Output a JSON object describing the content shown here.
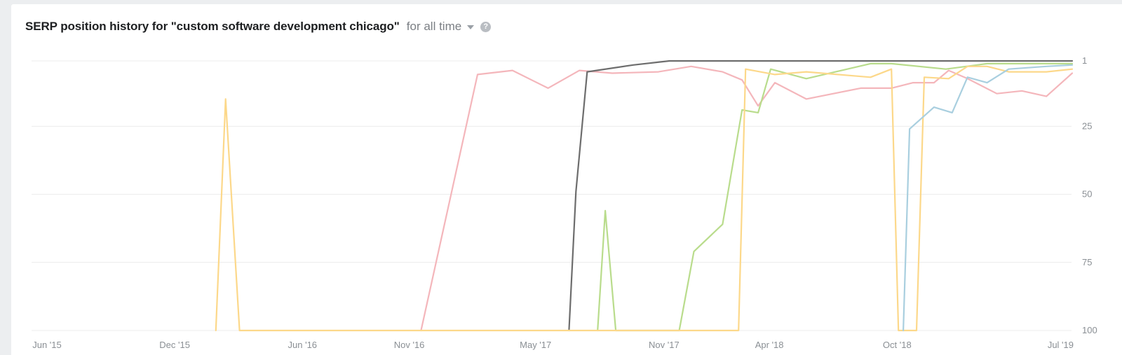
{
  "header": {
    "title": "SERP position history for \"custom software development chicago\"",
    "range_label": "for all time",
    "help_glyph": "?"
  },
  "chart_data": {
    "type": "line",
    "title": "SERP position history for \"custom software development chicago\"",
    "xlabel": "",
    "ylabel": "",
    "y_inverted": true,
    "ylim": [
      1,
      100
    ],
    "y_ticks": [
      1,
      25,
      50,
      75,
      100
    ],
    "xlim": [
      "2015-06-01",
      "2019-07-01"
    ],
    "x_ticks": [
      {
        "date": "2015-06-01",
        "label": "Jun '15"
      },
      {
        "date": "2015-12-01",
        "label": "Dec '15"
      },
      {
        "date": "2016-06-01",
        "label": "Jun '16"
      },
      {
        "date": "2016-11-01",
        "label": "Nov '16"
      },
      {
        "date": "2017-05-01",
        "label": "May '17"
      },
      {
        "date": "2017-11-01",
        "label": "Nov '17"
      },
      {
        "date": "2018-04-01",
        "label": "Apr '18"
      },
      {
        "date": "2018-10-01",
        "label": "Oct '18"
      },
      {
        "date": "2019-07-01",
        "label": "Jul '19"
      }
    ],
    "grid": true,
    "series": [
      {
        "color": "#f4b6bb",
        "points": [
          [
            "2016-12-10",
            100
          ],
          [
            "2017-03-01",
            6
          ],
          [
            "2017-04-20",
            4.5
          ],
          [
            "2017-06-10",
            11
          ],
          [
            "2017-07-25",
            4.5
          ],
          [
            "2017-09-10",
            5.5
          ],
          [
            "2017-11-15",
            5
          ],
          [
            "2018-01-01",
            3
          ],
          [
            "2018-02-15",
            5
          ],
          [
            "2018-03-15",
            8
          ],
          [
            "2018-04-07",
            17.5
          ],
          [
            "2018-05-01",
            9
          ],
          [
            "2018-06-15",
            15
          ],
          [
            "2018-09-01",
            11
          ],
          [
            "2018-10-15",
            11
          ],
          [
            "2018-11-15",
            9
          ],
          [
            "2018-12-15",
            9
          ],
          [
            "2019-01-05",
            4.5
          ],
          [
            "2019-02-01",
            7.5
          ],
          [
            "2019-03-15",
            13
          ],
          [
            "2019-04-20",
            12
          ],
          [
            "2019-05-25",
            14
          ],
          [
            "2019-07-01",
            5.5
          ]
        ]
      },
      {
        "color": "#6d6d6d",
        "points": [
          [
            "2017-07-10",
            100
          ],
          [
            "2017-07-20",
            49
          ],
          [
            "2017-08-05",
            5
          ],
          [
            "2017-10-10",
            2.5
          ],
          [
            "2017-12-01",
            1
          ],
          [
            "2019-07-01",
            1
          ]
        ]
      },
      {
        "color": "#b9dc8c",
        "points": [
          [
            "2017-08-20",
            100
          ],
          [
            "2017-08-31",
            56
          ],
          [
            "2017-09-15",
            100
          ],
          [
            "2017-12-15",
            100
          ],
          [
            "2018-01-05",
            71
          ],
          [
            "2018-02-15",
            61
          ],
          [
            "2018-03-15",
            19
          ],
          [
            "2018-04-07",
            20
          ],
          [
            "2018-04-25",
            4
          ],
          [
            "2018-06-15",
            7.5
          ],
          [
            "2018-09-15",
            2
          ],
          [
            "2018-10-15",
            2
          ],
          [
            "2019-01-01",
            4
          ],
          [
            "2019-03-01",
            2
          ],
          [
            "2019-07-01",
            2
          ]
        ]
      },
      {
        "color": "#fcd88a",
        "points": [
          [
            "2016-02-20",
            100
          ],
          [
            "2016-03-05",
            15
          ],
          [
            "2016-03-25",
            100
          ],
          [
            "2018-03-10",
            100
          ],
          [
            "2018-03-20",
            4
          ],
          [
            "2018-05-01",
            6
          ],
          [
            "2018-06-15",
            5
          ],
          [
            "2018-09-15",
            7
          ],
          [
            "2018-10-15",
            4
          ],
          [
            "2018-10-25",
            100
          ],
          [
            "2018-11-20",
            100
          ],
          [
            "2018-12-01",
            7
          ],
          [
            "2019-01-05",
            7.5
          ],
          [
            "2019-02-01",
            3
          ],
          [
            "2019-03-01",
            3
          ],
          [
            "2019-04-01",
            5
          ],
          [
            "2019-05-25",
            5
          ],
          [
            "2019-07-01",
            4
          ]
        ]
      },
      {
        "color": "#a9cfdf",
        "points": [
          [
            "2018-11-01",
            100
          ],
          [
            "2018-11-10",
            26
          ],
          [
            "2018-12-15",
            18
          ],
          [
            "2019-01-10",
            20
          ],
          [
            "2019-02-01",
            7
          ],
          [
            "2019-03-01",
            9
          ],
          [
            "2019-04-01",
            4
          ],
          [
            "2019-05-25",
            3
          ],
          [
            "2019-07-01",
            2.5
          ]
        ]
      }
    ]
  }
}
